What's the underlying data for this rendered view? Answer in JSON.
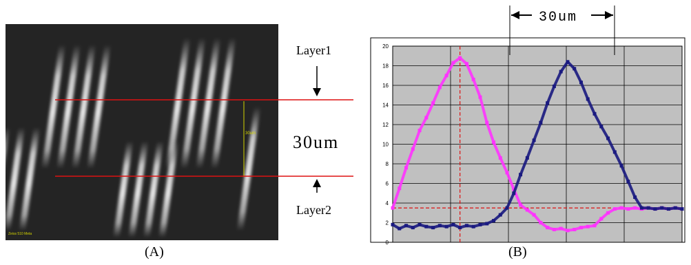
{
  "figure": {
    "panel_a_label": "(A)",
    "panel_b_label": "(B)",
    "layer1_label": "Layer1",
    "layer2_label": "Layer2",
    "separation_label": "30um",
    "micro_scale_text": "30um",
    "micro_caption": "Zeiss 510 Meta",
    "chart_top_label": "30um"
  },
  "colors": {
    "series_a": "#ff33ff",
    "series_b": "#1a1a80",
    "guide": "#dd1111",
    "plot_bg": "#c0c0c0"
  },
  "chart_data": {
    "type": "scatter",
    "title": "",
    "xlabel": "",
    "ylabel": "",
    "ylim": [
      0,
      20
    ],
    "yticks": [
      "0",
      "2",
      "4",
      "6",
      "8",
      "10",
      "12",
      "14",
      "16",
      "18",
      "20"
    ],
    "grid": true,
    "series": [
      {
        "color": "#ff33ff",
        "x": [
          0,
          10,
          20,
          30,
          40,
          50,
          60,
          70,
          80,
          90,
          100,
          110,
          120,
          130,
          140,
          150,
          160,
          170,
          180,
          190,
          200,
          210,
          220,
          230,
          240,
          250,
          260,
          270,
          280,
          290,
          300,
          310,
          320,
          330,
          340,
          350,
          360,
          370,
          380,
          390,
          400,
          410,
          420,
          430
        ],
        "y": [
          3.5,
          5.5,
          7.6,
          9.5,
          11.4,
          12.7,
          14.2,
          15.8,
          17.0,
          18.3,
          18.8,
          18.2,
          16.6,
          14.8,
          12.2,
          10.2,
          8.6,
          7.1,
          5.4,
          3.8,
          3.3,
          2.8,
          2.0,
          1.5,
          1.3,
          1.4,
          1.2,
          1.3,
          1.5,
          1.6,
          1.7,
          2.4,
          3.0,
          3.4,
          3.5,
          3.4,
          3.5,
          3.4,
          3.5,
          3.4,
          3.5,
          3.4,
          3.5,
          3.4
        ]
      },
      {
        "color": "#1a1a80",
        "x": [
          0,
          10,
          20,
          30,
          40,
          50,
          60,
          70,
          80,
          90,
          100,
          110,
          120,
          130,
          140,
          150,
          160,
          170,
          180,
          190,
          200,
          210,
          220,
          230,
          240,
          250,
          260,
          270,
          280,
          290,
          300,
          310,
          320,
          330,
          340,
          350,
          360,
          370,
          380,
          390,
          400,
          410,
          420,
          430
        ],
        "y": [
          1.8,
          1.4,
          1.7,
          1.5,
          1.8,
          1.6,
          1.5,
          1.7,
          1.6,
          1.8,
          1.5,
          1.7,
          1.6,
          1.8,
          1.9,
          2.2,
          2.8,
          3.5,
          5.0,
          6.9,
          8.6,
          10.4,
          12.2,
          14.2,
          15.9,
          17.4,
          18.4,
          17.7,
          16.3,
          14.6,
          13.1,
          11.8,
          10.6,
          9.2,
          7.8,
          6.2,
          4.6,
          3.5,
          3.5,
          3.4,
          3.5,
          3.4,
          3.5,
          3.4
        ]
      }
    ],
    "guides": {
      "peak_a_x": 100,
      "peak_b_x": 260,
      "baseline_y": 3.5
    }
  }
}
